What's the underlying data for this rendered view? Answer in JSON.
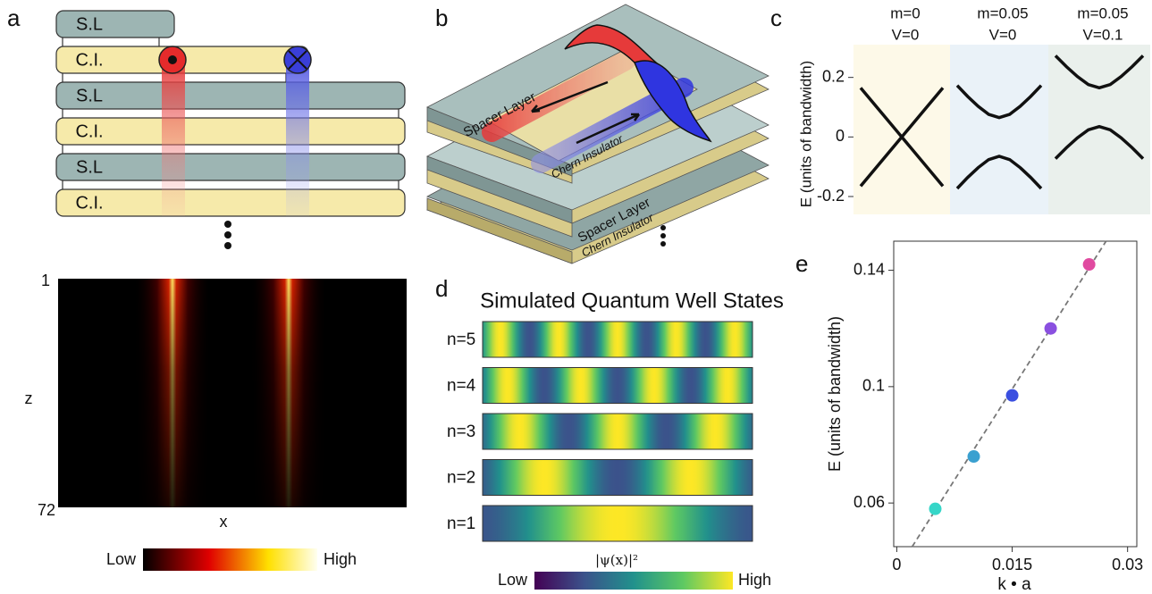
{
  "panel_labels": [
    "a",
    "b",
    "c",
    "d",
    "e"
  ],
  "panel_a": {
    "layers": [
      "S.L",
      "C.I.",
      "S.L",
      "C.I.",
      "S.L",
      "C.I."
    ],
    "heatmap": {
      "zticks": [
        1,
        72
      ],
      "ylabel": "z",
      "xlabel": "x",
      "colorbar": [
        "Low",
        "High"
      ]
    }
  },
  "panel_b": {
    "labels": [
      "Spacer Layer",
      "Chern Insulator",
      "Spacer Layer",
      "Chern Insulator"
    ]
  },
  "panel_d": {
    "title": "Simulated Quantum Well States",
    "states": [
      {
        "label": "n=5",
        "n": 5
      },
      {
        "label": "n=4",
        "n": 4
      },
      {
        "label": "n=3",
        "n": 3
      },
      {
        "label": "n=2",
        "n": 2
      },
      {
        "label": "n=1",
        "n": 1
      }
    ],
    "colorbar_label": "|ψ(x)|²",
    "colorbar": [
      "Low",
      "High"
    ]
  },
  "chart_data": [
    {
      "type": "line",
      "ylabel": "E (units of bandwidth)",
      "ylim": [
        -0.26,
        0.31
      ],
      "yticks": [
        0.2,
        0,
        -0.2
      ],
      "color": "#111111",
      "panels": [
        {
          "title": [
            "m=0",
            "V=0"
          ],
          "background": "#fdf9e8",
          "x": [
            -1,
            0,
            1
          ],
          "series": [
            {
              "values": [
                0.165,
                0,
                0.165
              ]
            },
            {
              "values": [
                -0.165,
                0,
                -0.165
              ]
            }
          ]
        },
        {
          "title": [
            "m=0.05",
            "V=0"
          ],
          "background": "#eaf2f8",
          "x": [
            -1,
            -0.75,
            -0.5,
            -0.25,
            0,
            0.25,
            0.5,
            0.75,
            1
          ],
          "series": [
            {
              "values": [
                0.173,
                0.136,
                0.103,
                0.076,
                0.065,
                0.076,
                0.103,
                0.136,
                0.173
              ]
            },
            {
              "values": [
                -0.173,
                -0.136,
                -0.103,
                -0.076,
                -0.065,
                -0.076,
                -0.103,
                -0.136,
                -0.173
              ]
            }
          ]
        },
        {
          "title": [
            "m=0.05",
            "V=0.1"
          ],
          "background": "#eaf0ec",
          "x": [
            -1,
            -0.75,
            -0.5,
            -0.25,
            0,
            0.25,
            0.5,
            0.75,
            1
          ],
          "series": [
            {
              "values": [
                0.273,
                0.236,
                0.203,
                0.176,
                0.165,
                0.176,
                0.203,
                0.236,
                0.273
              ]
            },
            {
              "values": [
                -0.073,
                -0.036,
                -0.003,
                0.024,
                0.035,
                0.024,
                -0.003,
                -0.036,
                -0.073
              ]
            }
          ]
        }
      ]
    },
    {
      "type": "scatter",
      "xlabel": "k • a",
      "ylabel": "E (units of bandwidth)",
      "xlim": [
        -0.0004,
        0.0312
      ],
      "ylim": [
        0.045,
        0.15
      ],
      "xticks": [
        0,
        0.015,
        0.03
      ],
      "yticks": [
        0.06,
        0.1,
        0.14
      ],
      "x": [
        0.005,
        0.01,
        0.015,
        0.02,
        0.025
      ],
      "values": [
        0.058,
        0.076,
        0.097,
        0.12,
        0.142
      ],
      "colors": [
        "#36d6c8",
        "#3aa0d0",
        "#3a4fe0",
        "#8a50e0",
        "#e04aa0"
      ],
      "fit": {
        "x": [
          0.002,
          0.0272
        ],
        "values": [
          0.045,
          0.15
        ]
      }
    }
  ]
}
